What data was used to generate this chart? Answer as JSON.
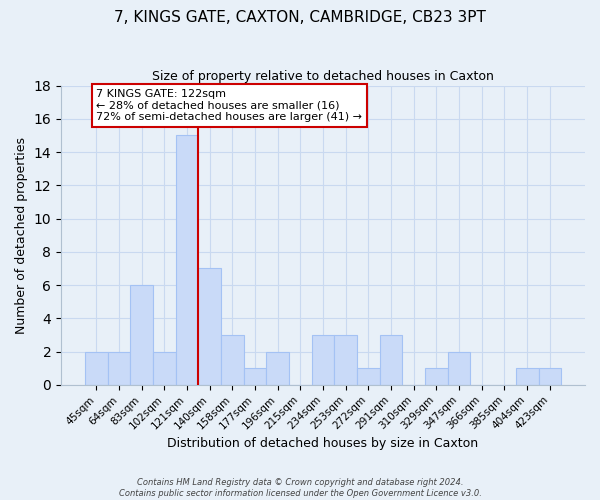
{
  "title": "7, KINGS GATE, CAXTON, CAMBRIDGE, CB23 3PT",
  "subtitle": "Size of property relative to detached houses in Caxton",
  "xlabel": "Distribution of detached houses by size in Caxton",
  "ylabel": "Number of detached properties",
  "bar_labels": [
    "45sqm",
    "64sqm",
    "83sqm",
    "102sqm",
    "121sqm",
    "140sqm",
    "158sqm",
    "177sqm",
    "196sqm",
    "215sqm",
    "234sqm",
    "253sqm",
    "272sqm",
    "291sqm",
    "310sqm",
    "329sqm",
    "347sqm",
    "366sqm",
    "385sqm",
    "404sqm",
    "423sqm"
  ],
  "bar_values": [
    2,
    2,
    6,
    2,
    15,
    7,
    3,
    1,
    2,
    0,
    3,
    3,
    1,
    3,
    0,
    1,
    2,
    0,
    0,
    1,
    1
  ],
  "bar_color": "#c9daf8",
  "bar_edge_color": "#a4c2f4",
  "vline_color": "#cc0000",
  "ylim": [
    0,
    18
  ],
  "yticks": [
    0,
    2,
    4,
    6,
    8,
    10,
    12,
    14,
    16,
    18
  ],
  "annotation_title": "7 KINGS GATE: 122sqm",
  "annotation_line1": "← 28% of detached houses are smaller (16)",
  "annotation_line2": "72% of semi-detached houses are larger (41) →",
  "annotation_box_color": "#ffffff",
  "annotation_box_edge": "#cc0000",
  "footer1": "Contains HM Land Registry data © Crown copyright and database right 2024.",
  "footer2": "Contains public sector information licensed under the Open Government Licence v3.0.",
  "grid_color": "#c9d9f0",
  "background_color": "#e8f0f8"
}
